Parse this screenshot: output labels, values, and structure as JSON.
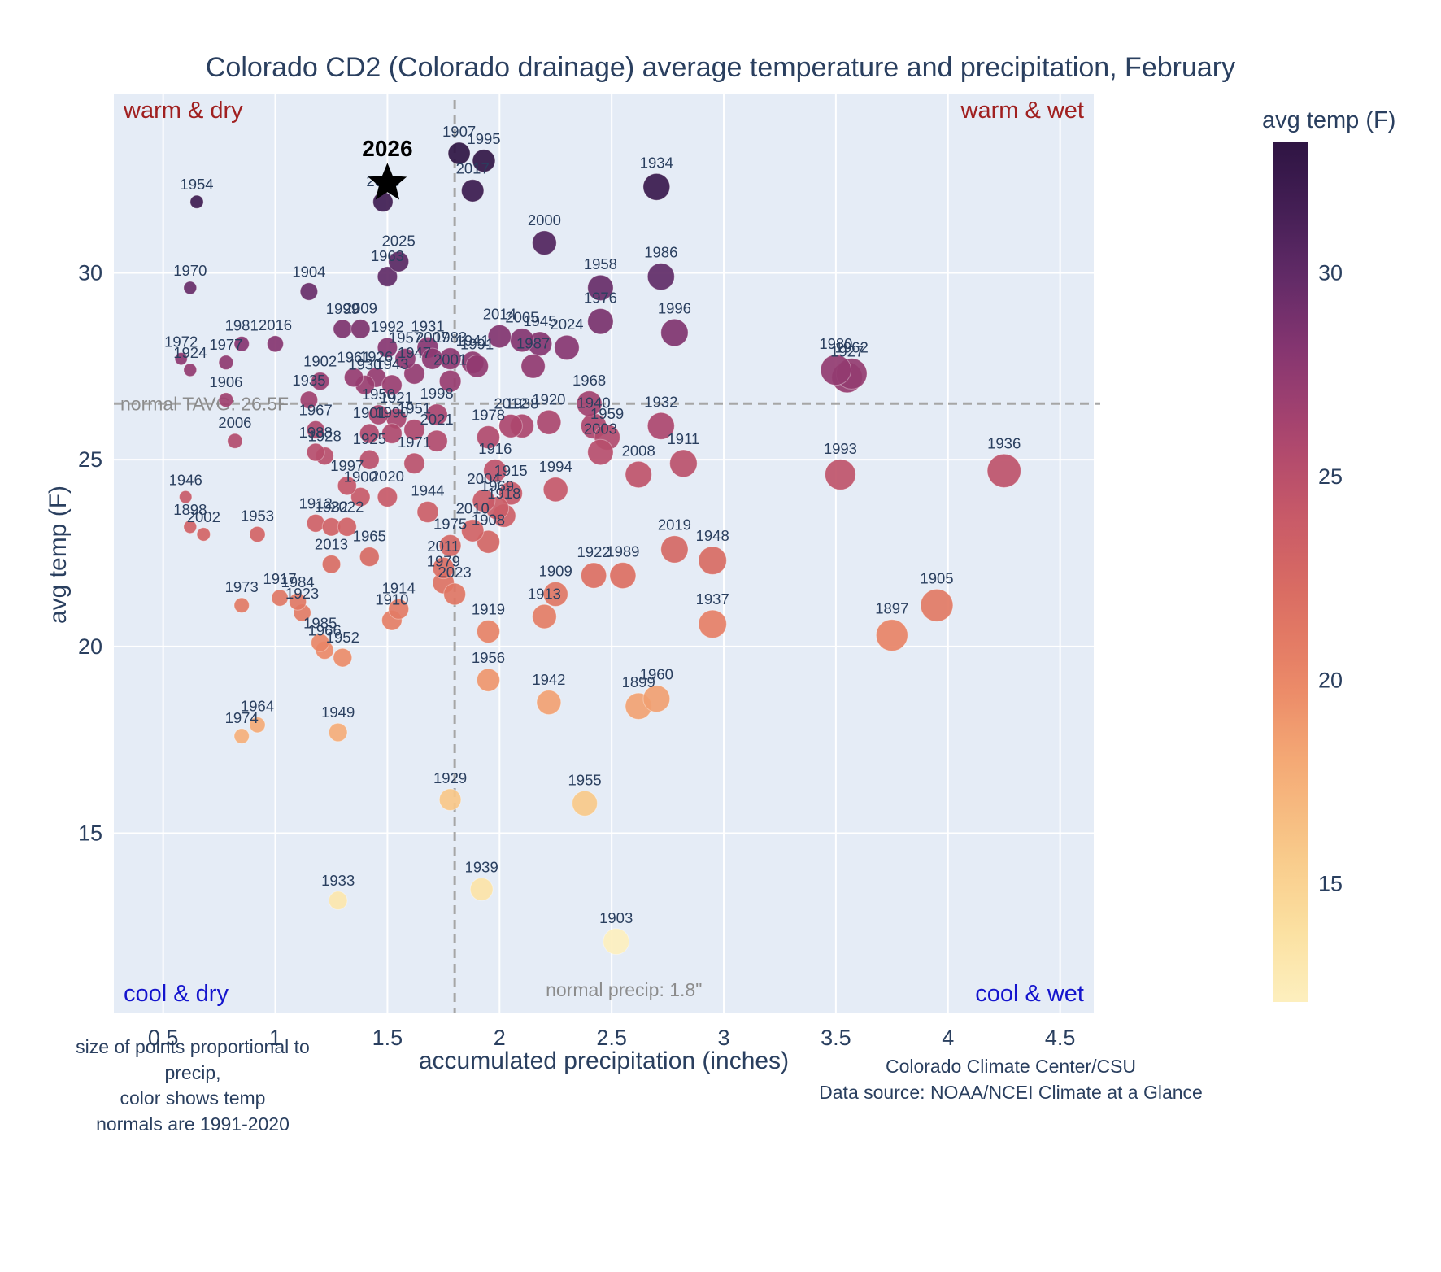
{
  "chart_data": {
    "type": "scatter",
    "title": "Colorado CD2 (Colorado drainage) average temperature and precipitation, February",
    "xlabel": "accumulated precipitation (inches)",
    "ylabel": "avg temp (F)",
    "xlim": [
      0.28,
      4.65
    ],
    "ylim": [
      10.2,
      34.8
    ],
    "grid": true,
    "plot_bg": "#e5ecf6",
    "grid_color": "#ffffff",
    "axis_text_color": "#2a3f5f",
    "label_color": "#2a3f5f",
    "x_tick_values": [
      0.5,
      1,
      1.5,
      2,
      2.5,
      3,
      3.5,
      4,
      4.5
    ],
    "x_tick_labels": [
      "0.5",
      "1",
      "1.5",
      "2",
      "2.5",
      "3",
      "3.5",
      "4",
      "4.5"
    ],
    "y_tick_values": [
      15,
      20,
      25,
      30
    ],
    "y_tick_labels": [
      "15",
      "20",
      "25",
      "30"
    ],
    "quadrants": {
      "top_left": "warm & dry",
      "top_right": "warm & wet",
      "bottom_left": "cool & dry",
      "bottom_right": "cool & wet",
      "warm_color": "#a02020",
      "cool_color": "#1414cd"
    },
    "normal_lines": {
      "line_color": "#a6a6a6",
      "text_color": "#8c8c8c",
      "tavg": {
        "value": 26.5,
        "label": "normal TAVG: 26.5F"
      },
      "precip": {
        "value": 1.8,
        "label": "normal precip: 1.8\""
      }
    },
    "highlight": {
      "year": "2026",
      "precip": 1.5,
      "temp": 32.4,
      "marker": "star",
      "color": "#000000"
    },
    "colorbar": {
      "label": "avg temp (F)",
      "range": [
        12.1,
        33.2
      ],
      "tick_values": [
        15,
        20,
        25,
        30
      ],
      "tick_labels": [
        "15",
        "20",
        "25",
        "30"
      ]
    },
    "color_stops": [
      [
        12,
        "#fdf0c0"
      ],
      [
        14,
        "#fbdf9e"
      ],
      [
        16,
        "#f8c687"
      ],
      [
        18,
        "#f4a975"
      ],
      [
        20,
        "#ea8767"
      ],
      [
        22,
        "#db6e62"
      ],
      [
        24,
        "#c85a68"
      ],
      [
        26,
        "#ab466e"
      ],
      [
        28,
        "#883671"
      ],
      [
        30,
        "#5f2a66"
      ],
      [
        32,
        "#3d1b50"
      ],
      [
        33.5,
        "#2c1340"
      ]
    ],
    "points_columns": [
      "year",
      "precip_in",
      "temp_f"
    ],
    "points": [
      [
        1897,
        3.75,
        20.3
      ],
      [
        1898,
        0.62,
        23.2
      ],
      [
        1899,
        2.62,
        18.4
      ],
      [
        1900,
        1.38,
        24.0
      ],
      [
        1901,
        1.42,
        25.7
      ],
      [
        1902,
        1.2,
        27.1
      ],
      [
        1903,
        2.52,
        12.1
      ],
      [
        1904,
        1.15,
        29.5
      ],
      [
        1905,
        3.95,
        21.1
      ],
      [
        1906,
        0.78,
        26.6
      ],
      [
        1907,
        1.82,
        33.2
      ],
      [
        1908,
        1.95,
        22.8
      ],
      [
        1909,
        2.25,
        21.4
      ],
      [
        1910,
        1.52,
        20.7
      ],
      [
        1911,
        2.82,
        24.9
      ],
      [
        1912,
        1.18,
        23.3
      ],
      [
        1913,
        2.2,
        20.8
      ],
      [
        1914,
        1.55,
        21.0
      ],
      [
        1915,
        2.05,
        24.1
      ],
      [
        1916,
        1.98,
        24.7
      ],
      [
        1917,
        1.02,
        21.3
      ],
      [
        1918,
        2.02,
        23.5
      ],
      [
        1919,
        1.95,
        20.4
      ],
      [
        1920,
        2.22,
        26.0
      ],
      [
        1921,
        1.54,
        26.1
      ],
      [
        1922,
        2.42,
        21.9
      ],
      [
        1923,
        1.12,
        20.9
      ],
      [
        1924,
        0.62,
        27.4
      ],
      [
        1925,
        1.42,
        25.0
      ],
      [
        1926,
        1.45,
        27.2
      ],
      [
        1927,
        3.55,
        27.2
      ],
      [
        1928,
        1.22,
        25.1
      ],
      [
        1929,
        1.78,
        15.9
      ],
      [
        1930,
        1.4,
        27.0
      ],
      [
        1931,
        1.68,
        28.0
      ],
      [
        1932,
        2.72,
        25.9
      ],
      [
        1933,
        1.28,
        13.2
      ],
      [
        1934,
        2.7,
        32.3
      ],
      [
        1935,
        1.15,
        26.6
      ],
      [
        1936,
        4.25,
        24.7
      ],
      [
        1937,
        2.95,
        20.6
      ],
      [
        1938,
        2.1,
        25.9
      ],
      [
        1939,
        1.92,
        13.5
      ],
      [
        1940,
        2.42,
        25.9
      ],
      [
        1941,
        1.88,
        27.6
      ],
      [
        1942,
        2.22,
        18.5
      ],
      [
        1943,
        1.52,
        27.0
      ],
      [
        1944,
        1.68,
        23.6
      ],
      [
        1945,
        2.18,
        28.1
      ],
      [
        1946,
        0.6,
        24.0
      ],
      [
        1947,
        1.62,
        27.3
      ],
      [
        1948,
        2.95,
        22.3
      ],
      [
        1949,
        1.28,
        17.7
      ],
      [
        1950,
        1.46,
        26.2
      ],
      [
        1951,
        1.62,
        25.8
      ],
      [
        1952,
        1.3,
        19.7
      ],
      [
        1953,
        0.92,
        23.0
      ],
      [
        1954,
        0.65,
        31.9
      ],
      [
        1955,
        2.38,
        15.8
      ],
      [
        1956,
        1.95,
        19.1
      ],
      [
        1957,
        1.58,
        27.7
      ],
      [
        1958,
        2.45,
        29.6
      ],
      [
        1959,
        2.48,
        25.6
      ],
      [
        1960,
        2.7,
        18.6
      ],
      [
        1961,
        1.35,
        27.2
      ],
      [
        1962,
        3.57,
        27.3
      ],
      [
        1963,
        1.5,
        29.9
      ],
      [
        1964,
        0.92,
        17.9
      ],
      [
        1965,
        1.42,
        22.4
      ],
      [
        1966,
        1.22,
        19.9
      ],
      [
        1967,
        1.18,
        25.8
      ],
      [
        1968,
        2.4,
        26.5
      ],
      [
        1969,
        1.99,
        23.7
      ],
      [
        1970,
        0.62,
        29.6
      ],
      [
        1971,
        1.62,
        24.9
      ],
      [
        1972,
        0.58,
        27.7
      ],
      [
        1973,
        0.85,
        21.1
      ],
      [
        1974,
        0.85,
        17.6
      ],
      [
        1975,
        1.78,
        22.7
      ],
      [
        1976,
        2.45,
        28.7
      ],
      [
        1977,
        0.78,
        27.6
      ],
      [
        1978,
        1.95,
        25.6
      ],
      [
        1979,
        1.75,
        21.7
      ],
      [
        1980,
        3.5,
        27.4
      ],
      [
        1981,
        0.85,
        28.1
      ],
      [
        1982,
        1.25,
        23.2
      ],
      [
        1983,
        1.78,
        27.7
      ],
      [
        1984,
        1.1,
        21.2
      ],
      [
        1985,
        1.2,
        20.1
      ],
      [
        1986,
        2.72,
        29.9
      ],
      [
        1987,
        2.15,
        27.5
      ],
      [
        1988,
        1.18,
        25.2
      ],
      [
        1989,
        2.55,
        21.9
      ],
      [
        1990,
        1.52,
        25.7
      ],
      [
        1991,
        1.9,
        27.5
      ],
      [
        1992,
        1.5,
        28.0
      ],
      [
        1993,
        3.52,
        24.6
      ],
      [
        1994,
        2.25,
        24.2
      ],
      [
        1995,
        1.93,
        33.0
      ],
      [
        1996,
        2.78,
        28.4
      ],
      [
        1997,
        1.32,
        24.3
      ],
      [
        1998,
        1.72,
        26.2
      ],
      [
        1999,
        1.3,
        28.5
      ],
      [
        2000,
        2.2,
        30.8
      ],
      [
        2001,
        1.78,
        27.1
      ],
      [
        2002,
        0.68,
        23.0
      ],
      [
        2003,
        2.45,
        25.2
      ],
      [
        2004,
        1.93,
        23.9
      ],
      [
        2005,
        2.1,
        28.2
      ],
      [
        2006,
        0.82,
        25.5
      ],
      [
        2007,
        1.7,
        27.7
      ],
      [
        2008,
        2.62,
        24.6
      ],
      [
        2009,
        1.38,
        28.5
      ],
      [
        2010,
        1.88,
        23.1
      ],
      [
        2011,
        1.75,
        22.1
      ],
      [
        2012,
        2.05,
        25.9
      ],
      [
        2013,
        1.25,
        22.2
      ],
      [
        2014,
        2.0,
        28.3
      ],
      [
        2015,
        1.48,
        31.9
      ],
      [
        2016,
        1.0,
        28.1
      ],
      [
        2017,
        1.88,
        32.2
      ],
      [
        2019,
        2.78,
        22.6
      ],
      [
        2020,
        1.5,
        24.0
      ],
      [
        2021,
        1.72,
        25.5
      ],
      [
        2022,
        1.32,
        23.2
      ],
      [
        2023,
        1.8,
        21.4
      ],
      [
        2024,
        2.3,
        28.0
      ],
      [
        2025,
        1.55,
        30.3
      ]
    ]
  },
  "footnotes": {
    "left_lines": [
      "size of points proportional to precip,",
      "color shows temp",
      "normals are 1991-2020"
    ],
    "right_lines": [
      "Colorado Climate Center/CSU",
      "Data source: NOAA/NCEI Climate at a Glance"
    ]
  }
}
